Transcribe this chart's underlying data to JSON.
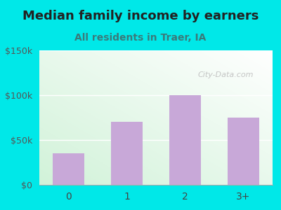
{
  "categories": [
    "0",
    "1",
    "2",
    "3+"
  ],
  "values": [
    35000,
    70000,
    100000,
    75000
  ],
  "bar_color": "#c8a8d8",
  "title": "Median family income by earners",
  "subtitle": "All residents in Traer, IA",
  "subtitle_color": "#3a7a7a",
  "title_color": "#222222",
  "background_color": "#00e8e8",
  "yticks": [
    0,
    50000,
    100000,
    150000
  ],
  "ytick_labels": [
    "$0",
    "$50k",
    "$100k",
    "$150k"
  ],
  "ylim": [
    0,
    150000
  ],
  "watermark": "City-Data.com",
  "watermark_color": "#bbbbbb",
  "title_fontsize": 13,
  "subtitle_fontsize": 10
}
